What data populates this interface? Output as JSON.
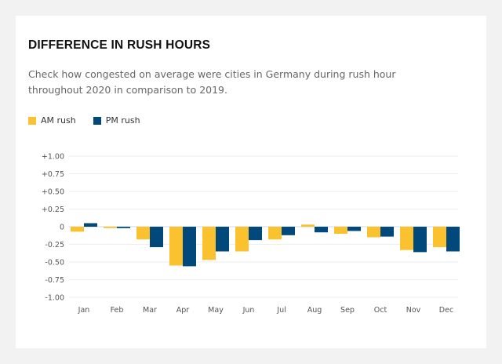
{
  "colors": {
    "am": "#f9c22e",
    "pm": "#00497a",
    "grid": "#eeeeee"
  },
  "chart_data": {
    "type": "bar",
    "title": "DIFFERENCE IN RUSH HOURS",
    "subtitle": "Check how congested on average were cities in Germany during rush hour throughout 2020 in comparison to 2019.",
    "categories": [
      "Jan",
      "Feb",
      "Mar",
      "Apr",
      "May",
      "Jun",
      "Jul",
      "Aug",
      "Sep",
      "Oct",
      "Nov",
      "Dec"
    ],
    "series": [
      {
        "name": "AM rush",
        "values": [
          -0.07,
          -0.02,
          -0.18,
          -0.55,
          -0.47,
          -0.35,
          -0.18,
          0.03,
          -0.1,
          -0.15,
          -0.33,
          -0.29
        ]
      },
      {
        "name": "PM rush",
        "values": [
          0.05,
          -0.02,
          -0.29,
          -0.56,
          -0.35,
          -0.19,
          -0.12,
          -0.08,
          -0.06,
          -0.14,
          -0.36,
          -0.35
        ]
      }
    ],
    "yticks": [
      1,
      0.75,
      0.5,
      0.25,
      0,
      -0.25,
      -0.5,
      -0.75,
      -1
    ],
    "ytick_labels": [
      "+1.00",
      "+0.75",
      "+0.50",
      "+0.25",
      "0",
      "-0.25",
      "-0.50",
      "-0.75",
      "-1.00"
    ],
    "ylim": [
      -1,
      1
    ],
    "xlabel": "",
    "ylabel": "",
    "grid": true,
    "legend": "top-left"
  }
}
